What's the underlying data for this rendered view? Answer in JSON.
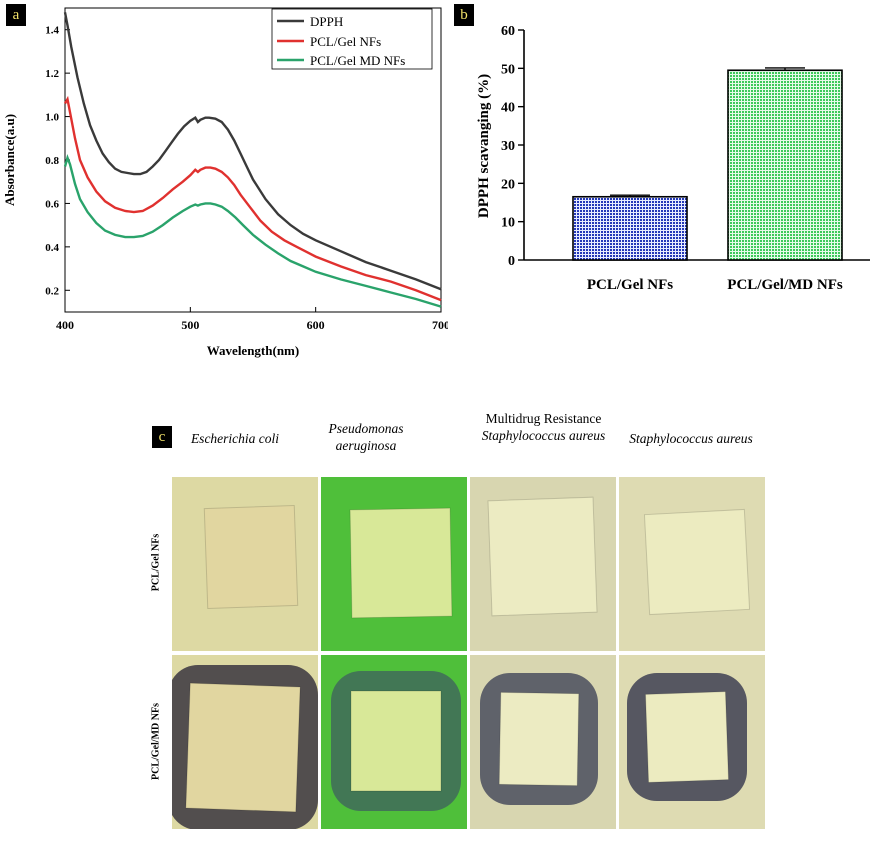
{
  "panels": {
    "a": "a",
    "b": "b",
    "c": "c"
  },
  "chart_data": [
    {
      "type": "line",
      "xlabel": "Wavelength(nm)",
      "ylabel": "Absorbance(a.u)",
      "xlim": [
        400,
        700
      ],
      "ylim": [
        0.1,
        1.5
      ],
      "xticks": [
        400,
        500,
        600,
        700
      ],
      "yticks": [
        0.2,
        0.4,
        0.6,
        0.8,
        1.0,
        1.2,
        1.4
      ],
      "xtick_labels": [
        "400",
        "500",
        "600",
        "700"
      ],
      "ytick_labels": [
        "0.2",
        "0.4",
        "0.6",
        "0.8",
        "1.0",
        "1.2",
        "1.4"
      ],
      "legend_position": "top-right",
      "grid": false,
      "series": [
        {
          "name": "DPPH",
          "color": "#3a3a3a",
          "points": [
            [
              400,
              1.48
            ],
            [
              402,
              1.42
            ],
            [
              405,
              1.32
            ],
            [
              410,
              1.18
            ],
            [
              415,
              1.06
            ],
            [
              420,
              0.96
            ],
            [
              425,
              0.89
            ],
            [
              430,
              0.83
            ],
            [
              435,
              0.79
            ],
            [
              440,
              0.76
            ],
            [
              445,
              0.745
            ],
            [
              450,
              0.74
            ],
            [
              455,
              0.735
            ],
            [
              460,
              0.735
            ],
            [
              465,
              0.745
            ],
            [
              470,
              0.77
            ],
            [
              475,
              0.8
            ],
            [
              480,
              0.84
            ],
            [
              485,
              0.88
            ],
            [
              490,
              0.92
            ],
            [
              495,
              0.955
            ],
            [
              500,
              0.98
            ],
            [
              504,
              0.995
            ],
            [
              506,
              0.975
            ],
            [
              508,
              0.985
            ],
            [
              512,
              0.995
            ],
            [
              515,
              0.995
            ],
            [
              520,
              0.99
            ],
            [
              525,
              0.975
            ],
            [
              530,
              0.94
            ],
            [
              535,
              0.89
            ],
            [
              540,
              0.83
            ],
            [
              545,
              0.77
            ],
            [
              550,
              0.71
            ],
            [
              560,
              0.62
            ],
            [
              570,
              0.55
            ],
            [
              580,
              0.5
            ],
            [
              590,
              0.46
            ],
            [
              600,
              0.43
            ],
            [
              620,
              0.38
            ],
            [
              640,
              0.33
            ],
            [
              660,
              0.29
            ],
            [
              680,
              0.25
            ],
            [
              700,
              0.205
            ]
          ]
        },
        {
          "name": "PCL/Gel NFs",
          "color": "#e0312f",
          "points": [
            [
              400,
              1.06
            ],
            [
              402,
              1.08
            ],
            [
              404,
              1.02
            ],
            [
              408,
              0.9
            ],
            [
              412,
              0.8
            ],
            [
              418,
              0.72
            ],
            [
              425,
              0.655
            ],
            [
              432,
              0.61
            ],
            [
              440,
              0.58
            ],
            [
              448,
              0.565
            ],
            [
              455,
              0.56
            ],
            [
              462,
              0.565
            ],
            [
              470,
              0.59
            ],
            [
              478,
              0.625
            ],
            [
              486,
              0.665
            ],
            [
              494,
              0.7
            ],
            [
              500,
              0.73
            ],
            [
              504,
              0.755
            ],
            [
              506,
              0.745
            ],
            [
              508,
              0.755
            ],
            [
              512,
              0.765
            ],
            [
              516,
              0.765
            ],
            [
              520,
              0.76
            ],
            [
              525,
              0.745
            ],
            [
              530,
              0.72
            ],
            [
              535,
              0.685
            ],
            [
              540,
              0.64
            ],
            [
              548,
              0.58
            ],
            [
              556,
              0.52
            ],
            [
              565,
              0.47
            ],
            [
              575,
              0.43
            ],
            [
              585,
              0.4
            ],
            [
              600,
              0.355
            ],
            [
              620,
              0.31
            ],
            [
              640,
              0.27
            ],
            [
              660,
              0.24
            ],
            [
              680,
              0.2
            ],
            [
              700,
              0.155
            ]
          ]
        },
        {
          "name": "PCL/Gel MD NFs",
          "color": "#2aa36b",
          "points": [
            [
              400,
              0.77
            ],
            [
              402,
              0.81
            ],
            [
              404,
              0.78
            ],
            [
              408,
              0.69
            ],
            [
              412,
              0.62
            ],
            [
              418,
              0.56
            ],
            [
              425,
              0.51
            ],
            [
              432,
              0.475
            ],
            [
              440,
              0.455
            ],
            [
              448,
              0.445
            ],
            [
              455,
              0.445
            ],
            [
              462,
              0.45
            ],
            [
              470,
              0.47
            ],
            [
              478,
              0.5
            ],
            [
              486,
              0.535
            ],
            [
              494,
              0.565
            ],
            [
              500,
              0.585
            ],
            [
              504,
              0.595
            ],
            [
              506,
              0.59
            ],
            [
              508,
              0.595
            ],
            [
              512,
              0.6
            ],
            [
              516,
              0.6
            ],
            [
              520,
              0.595
            ],
            [
              525,
              0.585
            ],
            [
              530,
              0.565
            ],
            [
              536,
              0.535
            ],
            [
              542,
              0.5
            ],
            [
              550,
              0.455
            ],
            [
              560,
              0.41
            ],
            [
              570,
              0.37
            ],
            [
              580,
              0.335
            ],
            [
              590,
              0.31
            ],
            [
              600,
              0.285
            ],
            [
              620,
              0.25
            ],
            [
              640,
              0.22
            ],
            [
              660,
              0.19
            ],
            [
              680,
              0.16
            ],
            [
              700,
              0.125
            ]
          ]
        }
      ]
    },
    {
      "type": "bar",
      "ylabel": "DPPH scavanging (%)",
      "ylim": [
        0,
        60
      ],
      "yticks": [
        0,
        10,
        20,
        30,
        40,
        50,
        60
      ],
      "ytick_labels": [
        "0",
        "10",
        "20",
        "30",
        "40",
        "50",
        "60"
      ],
      "categories": [
        "PCL/Gel NFs",
        "PCL/Gel/MD NFs"
      ],
      "values": [
        16.5,
        49.5
      ],
      "errors": [
        0.4,
        0.6
      ],
      "colors": [
        "#2438b8",
        "#3dc95a"
      ]
    }
  ],
  "antibacterial": {
    "columns": [
      {
        "lines": [
          "Escherichia coli"
        ],
        "italic": [
          true
        ]
      },
      {
        "lines": [
          "Pseudomonas",
          "aeruginosa"
        ],
        "italic": [
          true,
          true
        ]
      },
      {
        "lines": [
          "Multidrug Resistance",
          "Staphylococcus aureus"
        ],
        "italic": [
          false,
          true
        ]
      },
      {
        "lines": [
          "Staphylococcus aureus"
        ],
        "italic": [
          true
        ]
      }
    ],
    "rows": [
      "PCL/Gel NFs",
      "PCL/Gel/MD NFs"
    ],
    "media_colors": [
      "#ddd9a3",
      "#4fbf3a",
      "#d8d6b0",
      "#dedbb2"
    ],
    "zone_colors": [
      "#3a3540",
      "#3f6a5a",
      "#4a4e5e",
      "#3e4052"
    ],
    "film_colors": [
      "#e1d6a0",
      "#d8e898",
      "#ecebc2",
      "#ecebc0"
    ]
  }
}
